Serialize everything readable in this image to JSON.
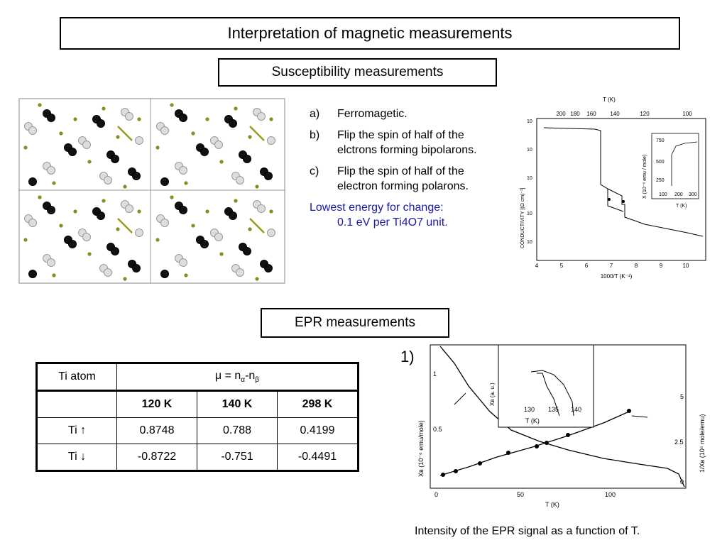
{
  "title": "Interpretation of magnetic measurements",
  "susceptibility_heading": "Susceptibility measurements",
  "list": [
    {
      "marker": "a)",
      "text": "Ferromagetic."
    },
    {
      "marker": "b)",
      "text": "Flip the spin of half of the elctrons forming bipolarons."
    },
    {
      "marker": "c)",
      "text": "Flip the spin of half of the electron forming polarons."
    }
  ],
  "note": {
    "line1": "Lowest energy for change:",
    "line2": "0.1 eV per Ti4O7 unit."
  },
  "conductivity_plot": {
    "top_axis_label": "T (K)",
    "top_ticks": [
      "200",
      "180",
      "160",
      "140",
      "120",
      "100"
    ],
    "bottom_ticks": [
      "4",
      "5",
      "6",
      "7",
      "8",
      "9",
      "10"
    ],
    "xlabel": "1000/T (K⁻¹)",
    "ylabel": "CONDUCTIVITY  [(Ω cm)⁻¹]",
    "inset": {
      "ylabel": "X (10⁻⁶ emu / mole)",
      "yticks": [
        "750",
        "500",
        "250"
      ],
      "xticks": [
        "100",
        "200",
        "300"
      ],
      "xlabel": "T (K)"
    }
  },
  "epr_heading": "EPR measurements",
  "table": {
    "header_col": "Ti atom",
    "header_span": "μ = nα-nβ",
    "temperatures": [
      "120 K",
      "140 K",
      "298 K"
    ],
    "rows": [
      {
        "label": "Ti ↑",
        "values": [
          "0.8748",
          "0.788",
          "0.4199"
        ]
      },
      {
        "label": "Ti ↓",
        "values": [
          "-0.8722",
          "-0.751",
          "-0.4491"
        ]
      }
    ]
  },
  "epr_plot": {
    "label": "1)",
    "xlabel": "T (K)",
    "xticks": [
      "0",
      "50",
      "100"
    ],
    "left_yticks": [
      "1",
      "0.5"
    ],
    "right_yticks": [
      "5",
      "2.5",
      "0"
    ],
    "left_ylabel": "Xʙ (10⁻⁶ emu/mole)",
    "right_ylabel": "1/Xʙ (10⁶ mole/emu)",
    "inset": {
      "ylabel": "Xʙ (a. u.)",
      "xticks": [
        "130",
        "135",
        "140"
      ],
      "xlabel": "T (K)"
    },
    "caption": "Intensity of the EPR signal as a function of T."
  }
}
